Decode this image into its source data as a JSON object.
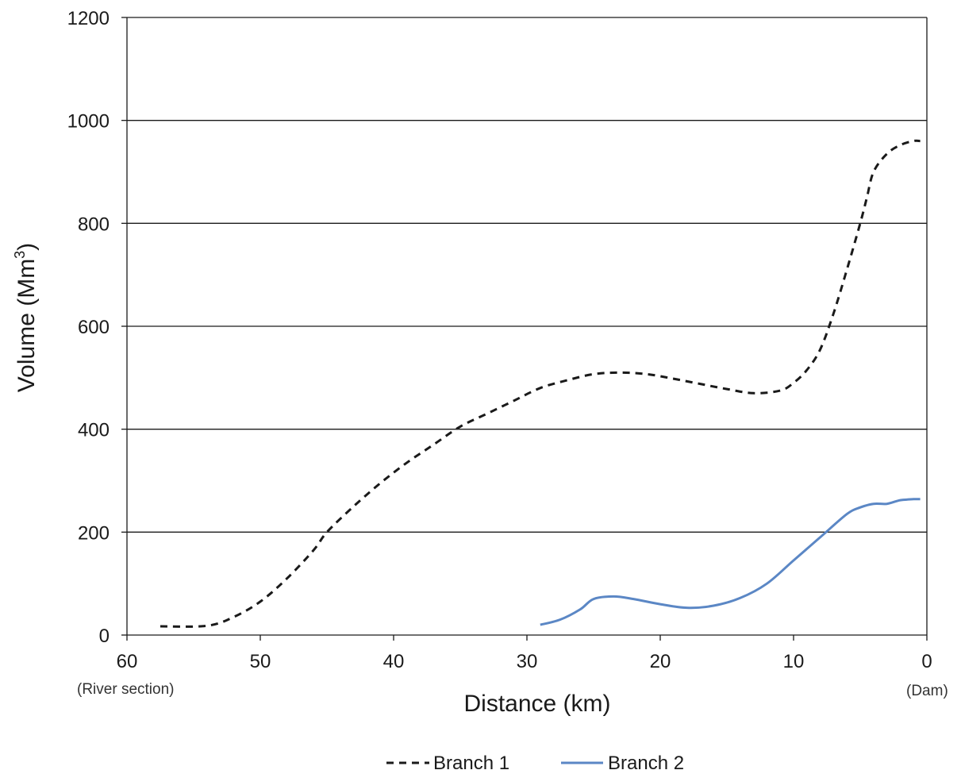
{
  "chart_data": {
    "type": "line",
    "xlabel": "Distance (km)",
    "ylabel": "Volume (Mm",
    "ylabel_sup": "3",
    "ylabel_suffix": ")",
    "xlim": [
      60,
      0
    ],
    "ylim": [
      0,
      1200
    ],
    "x_reversed": true,
    "x_ticks": [
      60,
      50,
      40,
      30,
      20,
      10,
      0
    ],
    "y_ticks": [
      0,
      200,
      400,
      600,
      800,
      1000,
      1200
    ],
    "grid": "horizontal",
    "legend_position": "bottom",
    "annotations": {
      "left": "(River section)",
      "right": "(Dam)"
    },
    "series": [
      {
        "name": "Branch 1",
        "style": "dashed",
        "color": "#1a1a1a",
        "points": [
          [
            57.5,
            17
          ],
          [
            54,
            18
          ],
          [
            52,
            35
          ],
          [
            50,
            65
          ],
          [
            48,
            110
          ],
          [
            46,
            165
          ],
          [
            45,
            200
          ],
          [
            43,
            250
          ],
          [
            41,
            295
          ],
          [
            39,
            335
          ],
          [
            37,
            370
          ],
          [
            35,
            405
          ],
          [
            33,
            430
          ],
          [
            31,
            455
          ],
          [
            29,
            480
          ],
          [
            27,
            495
          ],
          [
            25,
            507
          ],
          [
            23,
            510
          ],
          [
            21,
            507
          ],
          [
            19,
            498
          ],
          [
            17,
            488
          ],
          [
            15,
            478
          ],
          [
            13,
            470
          ],
          [
            11,
            475
          ],
          [
            10,
            490
          ],
          [
            9,
            515
          ],
          [
            8,
            555
          ],
          [
            7,
            625
          ],
          [
            6,
            710
          ],
          [
            5,
            800
          ],
          [
            4.5,
            850
          ],
          [
            4,
            900
          ],
          [
            3,
            935
          ],
          [
            2,
            952
          ],
          [
            1,
            960
          ],
          [
            0.5,
            960
          ]
        ]
      },
      {
        "name": "Branch 2",
        "style": "solid",
        "color": "#5b87c5",
        "points": [
          [
            29,
            20
          ],
          [
            27.5,
            30
          ],
          [
            26,
            50
          ],
          [
            25,
            70
          ],
          [
            23.5,
            75
          ],
          [
            22,
            70
          ],
          [
            20,
            60
          ],
          [
            18,
            53
          ],
          [
            16,
            57
          ],
          [
            14,
            72
          ],
          [
            12,
            100
          ],
          [
            10,
            145
          ],
          [
            8,
            190
          ],
          [
            6,
            235
          ],
          [
            5,
            248
          ],
          [
            4,
            255
          ],
          [
            3,
            255
          ],
          [
            2,
            262
          ],
          [
            1,
            264
          ],
          [
            0.5,
            264
          ]
        ]
      }
    ]
  }
}
